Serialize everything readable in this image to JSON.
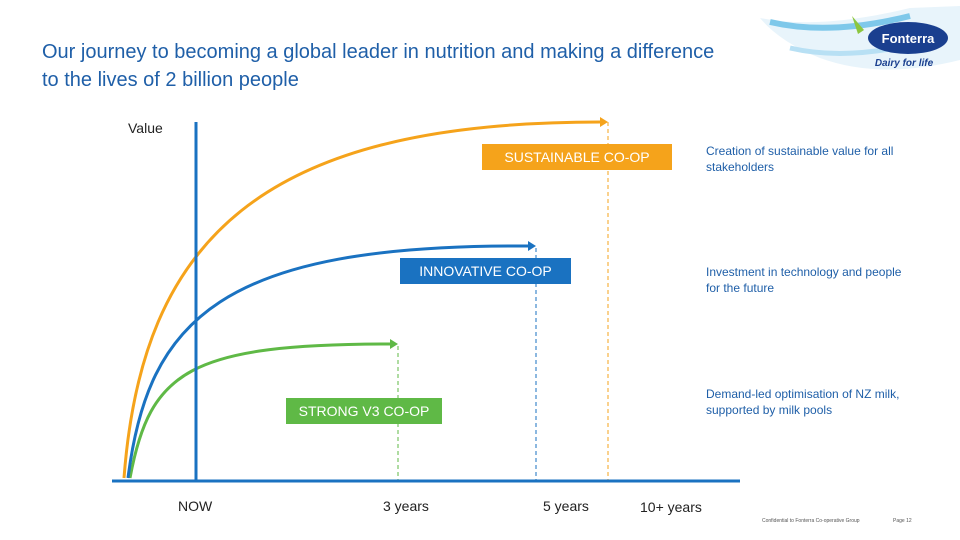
{
  "slide": {
    "title_line1": "Our journey to becoming a global leader in nutrition and making a difference",
    "title_line2": "to the lives of 2 billion people"
  },
  "logo": {
    "brand": "Fonterra",
    "tagline": "Dairy for life",
    "icon": "fonterra-logo-icon",
    "colors": {
      "navy": "#1a3f8f",
      "light_blue": "#7ec8ea",
      "green": "#8cc63f"
    }
  },
  "axis": {
    "y_label": "Value",
    "x_labels": [
      "NOW",
      "3 years",
      "5 years",
      "10+ years"
    ]
  },
  "stages": [
    {
      "label": "STRONG V3 CO-OP",
      "color": "#5fb946",
      "description": "Demand-led optimisation of NZ milk, supported by milk pools"
    },
    {
      "label": "INNOVATIVE CO-OP",
      "color": "#1a72c1",
      "description": "Investment in technology and people for the future"
    },
    {
      "label": "SUSTAINABLE CO-OP",
      "color": "#f5a31b",
      "description": "Creation of sustainable value for all stakeholders"
    }
  ],
  "footer": {
    "org": "Confidential to Fonterra Co-operative Group",
    "page": "Page 12"
  }
}
